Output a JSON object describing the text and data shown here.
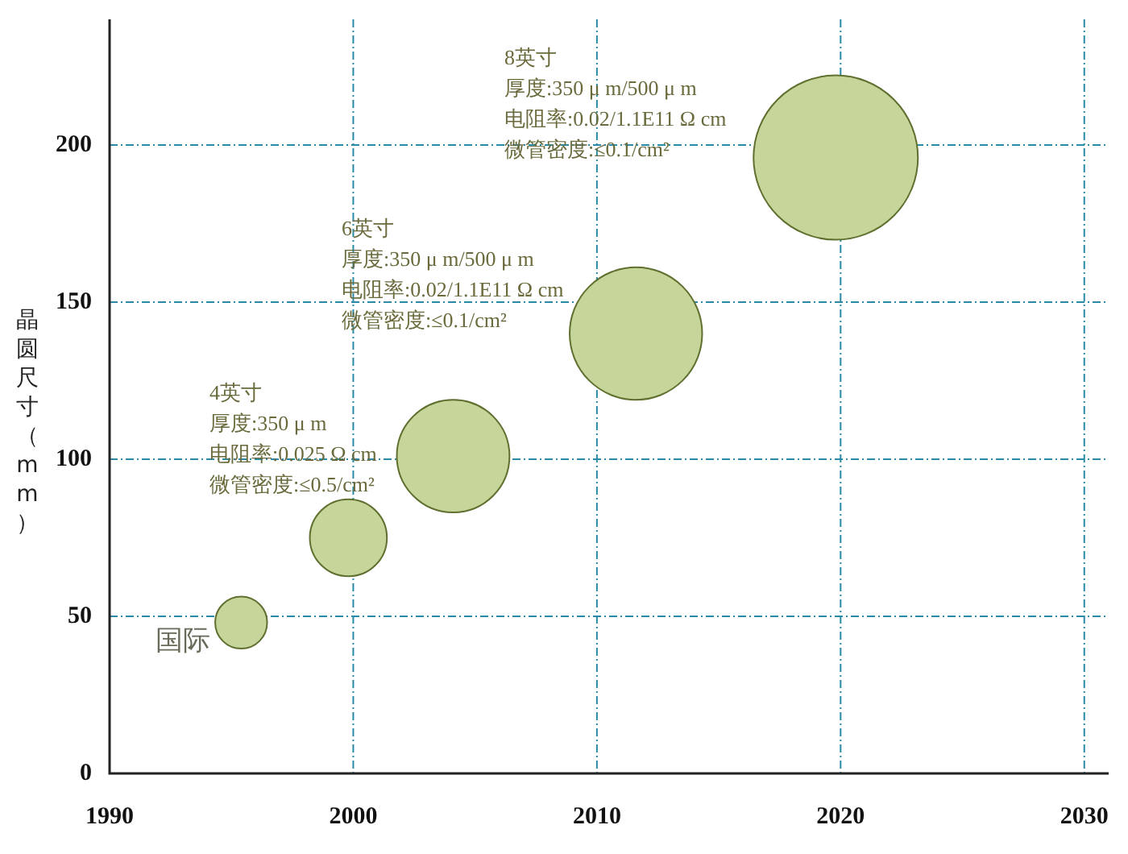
{
  "chart_data": {
    "type": "bubble",
    "ylabel": "晶圆尺寸（mm）",
    "x": [
      1995.4,
      1999.8,
      2004.1,
      2011.6,
      2019.8
    ],
    "series": [
      {
        "name": "国际",
        "color": "#c6d69b",
        "values": [
          48,
          75,
          101,
          140,
          196
        ],
        "sizes": [
          0.1,
          0.22,
          0.47,
          0.65,
          1
        ]
      }
    ],
    "xlim": [
      1990,
      2031
    ],
    "xticks": [
      1990,
      2000,
      2010,
      2020,
      2030
    ],
    "ylim": [
      0,
      240
    ],
    "yticks": [
      0,
      50,
      100,
      150,
      200
    ],
    "grid": true,
    "legend": false,
    "annotations": [
      "4英寸",
      "厚度:350 μ m",
      "电阻率:0.025 Ω cm",
      "微管密度:≤0.5/cm²",
      "6英寸",
      "厚度:350 μ m/500 μ m",
      "电阻率:0.02/1.1E11 Ω cm",
      "微管密度:≤0.1/cm²",
      "8英寸",
      "厚度:350 μ m/500 μ m",
      "电阻率:0.02/1.1E11 Ω cm",
      "微管密度:≤0.1/cm²"
    ]
  }
}
